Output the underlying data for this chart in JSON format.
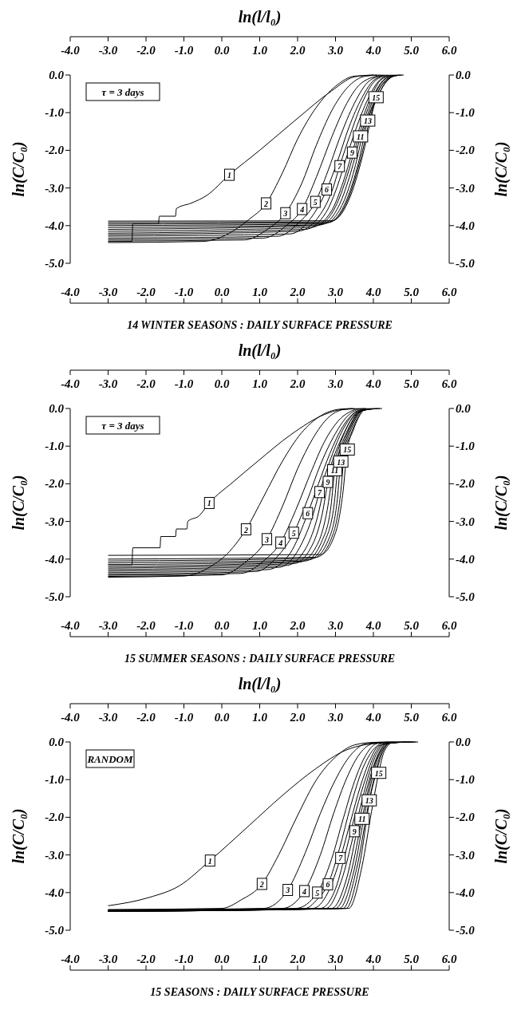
{
  "chart_data": [
    {
      "type": "line",
      "title": "14 WINTER SEASONS : DAILY SURFACE PRESSURE",
      "x2label": "ln(l/l₀)",
      "ylabel": "ln(C/C₀)",
      "y2label": "ln(C/C₀)",
      "xlim": [
        -4,
        6
      ],
      "xticks": [
        {
          "value": -4,
          "label": "-4.0"
        },
        {
          "value": -3,
          "label": "-3.0"
        },
        {
          "value": -2,
          "label": "-2.0"
        },
        {
          "value": -1,
          "label": "-1.0"
        },
        {
          "value": 0,
          "label": "0.0"
        },
        {
          "value": 1,
          "label": "1.0"
        },
        {
          "value": 2,
          "label": "2.0"
        },
        {
          "value": 3,
          "label": "3.0"
        },
        {
          "value": 4,
          "label": "4.0"
        },
        {
          "value": 5,
          "label": "5.0"
        },
        {
          "value": 6,
          "label": "6.0"
        }
      ],
      "x2lim": [
        -4,
        6
      ],
      "x2ticks": [
        {
          "value": -4,
          "label": "-4.0"
        },
        {
          "value": -3,
          "label": "-3.0"
        },
        {
          "value": -2,
          "label": "-2.0"
        },
        {
          "value": -1,
          "label": "-1.0"
        },
        {
          "value": 0,
          "label": "0.0"
        },
        {
          "value": 1,
          "label": "1.0"
        },
        {
          "value": 2,
          "label": "2.0"
        },
        {
          "value": 3,
          "label": "3.0"
        },
        {
          "value": 4,
          "label": "4.0"
        },
        {
          "value": 5,
          "label": "5.0"
        },
        {
          "value": 6,
          "label": "6.0"
        }
      ],
      "ylim": [
        -5,
        0
      ],
      "yticks": [
        {
          "value": 0,
          "label": "0.0"
        },
        {
          "value": -1,
          "label": "-1.0"
        },
        {
          "value": -2,
          "label": "-2.0"
        },
        {
          "value": -3,
          "label": "-3.0"
        },
        {
          "value": -4,
          "label": "-4.0"
        },
        {
          "value": -5,
          "label": "-5.0"
        }
      ],
      "y2lim": [
        -5,
        0
      ],
      "y2ticks": [
        {
          "value": 0,
          "label": "0.0"
        },
        {
          "value": -1,
          "label": "-1.0"
        },
        {
          "value": -2,
          "label": "-2.0"
        },
        {
          "value": -3,
          "label": "-3.0"
        },
        {
          "value": -4,
          "label": "-4.0"
        },
        {
          "value": -5,
          "label": "-5.0"
        }
      ],
      "series": [
        {
          "color": "#000000",
          "x": [
            -3,
            -2.37,
            -2.35,
            -1.67,
            -1.65,
            -1.22,
            -1.2,
            -0.8,
            -0.4,
            0.2,
            1.0,
            2.0,
            2.9,
            3.5,
            4.0
          ],
          "values": [
            -4.42,
            -4.42,
            -3.95,
            -3.95,
            -3.75,
            -3.75,
            -3.55,
            -3.4,
            -3.2,
            -2.65,
            -2.0,
            -1.15,
            -0.42,
            -0.05,
            0
          ]
        },
        {
          "color": "#000000",
          "x": [
            -3,
            -0.5,
            0.2,
            0.7,
            1.17,
            1.6,
            2.0,
            2.5,
            3.0,
            3.5,
            4.1
          ],
          "values": [
            -4.45,
            -4.42,
            -4.2,
            -3.85,
            -3.41,
            -2.6,
            -1.7,
            -0.85,
            -0.3,
            -0.03,
            0
          ]
        },
        {
          "color": "#000000",
          "x": [
            -3,
            0.6,
            1.2,
            1.68,
            2.1,
            2.5,
            2.9,
            3.3,
            3.8,
            4.2
          ],
          "values": [
            -4.41,
            -4.38,
            -4.1,
            -3.67,
            -2.9,
            -1.85,
            -0.95,
            -0.35,
            -0.03,
            0
          ]
        },
        {
          "color": "#000000",
          "x": [
            -3,
            1.1,
            1.7,
            2.12,
            2.5,
            2.9,
            3.3,
            3.7,
            4.25
          ],
          "values": [
            -4.37,
            -4.33,
            -4.0,
            -3.56,
            -2.7,
            -1.65,
            -0.75,
            -0.2,
            0
          ]
        },
        {
          "color": "#000000",
          "x": [
            -3,
            1.5,
            2.0,
            2.47,
            2.8,
            3.1,
            3.5,
            3.9,
            4.3
          ],
          "values": [
            -4.33,
            -4.28,
            -3.95,
            -3.37,
            -2.55,
            -1.7,
            -0.75,
            -0.15,
            0
          ]
        },
        {
          "color": "#000000",
          "x": [
            -3,
            1.8,
            2.35,
            2.77,
            3.05,
            3.35,
            3.7,
            4.0,
            4.35
          ],
          "values": [
            -4.28,
            -4.22,
            -3.8,
            -3.04,
            -2.3,
            -1.4,
            -0.6,
            -0.15,
            0
          ]
        },
        {
          "color": "#000000",
          "x": [
            -3,
            2.0,
            2.6,
            2.9,
            3.11,
            3.4,
            3.7,
            4.05,
            4.4
          ],
          "values": [
            -4.24,
            -4.15,
            -3.7,
            -3.1,
            -2.42,
            -1.55,
            -0.75,
            -0.15,
            0
          ]
        },
        {
          "color": "#000000",
          "x": [
            -3,
            2.2,
            2.75,
            3.05,
            3.27,
            3.55,
            3.85,
            4.15,
            4.45
          ],
          "values": [
            -4.2,
            -4.1,
            -3.65,
            -2.95,
            -2.25,
            -1.4,
            -0.65,
            -0.15,
            0
          ]
        },
        {
          "color": "#000000",
          "x": [
            -3,
            2.35,
            2.9,
            3.2,
            3.44,
            3.7,
            3.95,
            4.2,
            4.5
          ],
          "values": [
            -4.15,
            -4.05,
            -3.6,
            -2.85,
            -2.06,
            -1.2,
            -0.55,
            -0.13,
            0
          ]
        },
        {
          "color": "#000000",
          "x": [
            -3,
            2.5,
            3.0,
            3.3,
            3.55,
            3.8,
            4.05,
            4.3,
            4.55
          ],
          "values": [
            -4.1,
            -4.0,
            -3.5,
            -2.7,
            -1.85,
            -1.05,
            -0.45,
            -0.1,
            0
          ]
        },
        {
          "color": "#000000",
          "x": [
            -3,
            2.6,
            3.1,
            3.4,
            3.66,
            3.9,
            4.1,
            4.35,
            4.6
          ],
          "values": [
            -4.05,
            -3.98,
            -3.45,
            -2.6,
            -1.63,
            -0.9,
            -0.4,
            -0.08,
            0
          ]
        },
        {
          "color": "#000000",
          "x": [
            -3,
            2.7,
            3.2,
            3.5,
            3.75,
            4.0,
            4.2,
            4.45,
            4.65
          ],
          "values": [
            -4.0,
            -3.95,
            -3.4,
            -2.5,
            -1.45,
            -0.75,
            -0.3,
            -0.05,
            0
          ]
        },
        {
          "color": "#000000",
          "x": [
            -3,
            2.8,
            3.3,
            3.6,
            3.85,
            4.1,
            4.3,
            4.5,
            4.7
          ],
          "values": [
            -3.96,
            -3.92,
            -3.3,
            -2.35,
            -1.21,
            -0.6,
            -0.22,
            -0.04,
            0
          ]
        },
        {
          "color": "#000000",
          "x": [
            -3,
            2.85,
            3.35,
            3.67,
            3.95,
            4.15,
            4.35,
            4.55,
            4.75
          ],
          "values": [
            -3.92,
            -3.9,
            -3.25,
            -2.2,
            -1.0,
            -0.5,
            -0.17,
            -0.03,
            0
          ]
        },
        {
          "color": "#000000",
          "x": [
            -3,
            2.9,
            3.4,
            3.75,
            3.95,
            4.07,
            4.3,
            4.5,
            4.8
          ],
          "values": [
            -3.88,
            -3.87,
            -3.2,
            -2.0,
            -1.1,
            -0.59,
            -0.18,
            -0.03,
            0
          ]
        }
      ],
      "annotations": [
        "τ = 3 days",
        {
          "text": "1",
          "x": 0.2,
          "y": -2.65
        },
        {
          "text": "2",
          "x": 1.17,
          "y": -3.41
        },
        {
          "text": "3",
          "x": 1.68,
          "y": -3.67
        },
        {
          "text": "4",
          "x": 2.12,
          "y": -3.56
        },
        {
          "text": "5",
          "x": 2.47,
          "y": -3.37
        },
        {
          "text": "6",
          "x": 2.77,
          "y": -3.04
        },
        {
          "text": "7",
          "x": 3.11,
          "y": -2.42
        },
        {
          "text": "9",
          "x": 3.44,
          "y": -2.06
        },
        {
          "text": "11",
          "x": 3.66,
          "y": -1.63
        },
        {
          "text": "13",
          "x": 3.85,
          "y": -1.21
        },
        {
          "text": "15",
          "x": 4.07,
          "y": -0.59
        }
      ]
    },
    {
      "type": "line",
      "title": "15 SUMMER SEASONS : DAILY SURFACE PRESSURE",
      "x2label": "ln(l/l₀)",
      "ylabel": "ln(C/C₀)",
      "y2label": "ln(C/C₀)",
      "xlim": [
        -4,
        6
      ],
      "xticks": [
        {
          "value": -4,
          "label": "-4.0"
        },
        {
          "value": -3,
          "label": "-3.0"
        },
        {
          "value": -2,
          "label": "-2.0"
        },
        {
          "value": -1,
          "label": "-1.0"
        },
        {
          "value": 0,
          "label": "0.0"
        },
        {
          "value": 1,
          "label": "1.0"
        },
        {
          "value": 2,
          "label": "2.0"
        },
        {
          "value": 3,
          "label": "3.0"
        },
        {
          "value": 4,
          "label": "4.0"
        },
        {
          "value": 5,
          "label": "5.0"
        },
        {
          "value": 6,
          "label": "6.0"
        }
      ],
      "x2lim": [
        -4,
        6
      ],
      "x2ticks": [
        {
          "value": -4,
          "label": "-4.0"
        },
        {
          "value": -3,
          "label": "-3.0"
        },
        {
          "value": -2,
          "label": "-2.0"
        },
        {
          "value": -1,
          "label": "-1.0"
        },
        {
          "value": 0,
          "label": "0.0"
        },
        {
          "value": 1,
          "label": "1.0"
        },
        {
          "value": 2,
          "label": "2.0"
        },
        {
          "value": 3,
          "label": "3.0"
        },
        {
          "value": 4,
          "label": "4.0"
        },
        {
          "value": 5,
          "label": "5.0"
        },
        {
          "value": 6,
          "label": "6.0"
        }
      ],
      "ylim": [
        -5,
        0
      ],
      "yticks": [
        {
          "value": 0,
          "label": "0.0"
        },
        {
          "value": -1,
          "label": "-1.0"
        },
        {
          "value": -2,
          "label": "-2.0"
        },
        {
          "value": -3,
          "label": "-3.0"
        },
        {
          "value": -4,
          "label": "-4.0"
        },
        {
          "value": -5,
          "label": "-5.0"
        }
      ],
      "y2lim": [
        -5,
        0
      ],
      "y2ticks": [
        {
          "value": 0,
          "label": "0.0"
        },
        {
          "value": -1,
          "label": "-1.0"
        },
        {
          "value": -2,
          "label": "-2.0"
        },
        {
          "value": -3,
          "label": "-3.0"
        },
        {
          "value": -4,
          "label": "-4.0"
        },
        {
          "value": -5,
          "label": "-5.0"
        }
      ],
      "series": [
        {
          "color": "#000000",
          "x": [
            -3,
            -2.37,
            -2.35,
            -1.63,
            -1.61,
            -1.22,
            -1.2,
            -0.92,
            -0.9,
            -0.6,
            -0.33,
            0.3,
            0.95,
            1.83,
            2.71,
            3.16,
            3.8
          ],
          "values": [
            -4.15,
            -4.15,
            -3.7,
            -3.7,
            -3.4,
            -3.4,
            -3.2,
            -3.2,
            -3.0,
            -2.85,
            -2.51,
            -1.95,
            -1.4,
            -0.69,
            -0.16,
            -0.03,
            0
          ]
        },
        {
          "color": "#000000",
          "x": [
            -3,
            -1.0,
            -0.3,
            0.2,
            0.64,
            1.1,
            1.6,
            2.1,
            2.6,
            3.1,
            3.45
          ],
          "values": [
            -4.48,
            -4.45,
            -4.2,
            -3.8,
            -3.21,
            -2.35,
            -1.4,
            -0.65,
            -0.2,
            -0.02,
            0
          ]
        },
        {
          "color": "#000000",
          "x": [
            -3,
            0,
            0.6,
            1.19,
            1.6,
            2.0,
            2.4,
            2.8,
            3.2,
            3.51
          ],
          "values": [
            -4.46,
            -4.42,
            -4.1,
            -3.47,
            -2.6,
            -1.6,
            -0.8,
            -0.25,
            -0.03,
            0
          ]
        },
        {
          "color": "#000000",
          "x": [
            -3,
            0.5,
            1.1,
            1.55,
            1.95,
            2.35,
            2.7,
            3.1,
            3.5,
            3.57
          ],
          "values": [
            -4.43,
            -4.38,
            -4.05,
            -3.56,
            -2.7,
            -1.7,
            -0.9,
            -0.3,
            -0.03,
            0
          ]
        },
        {
          "color": "#000000",
          "x": [
            -3,
            0.9,
            1.45,
            1.9,
            2.25,
            2.6,
            2.95,
            3.3,
            3.63
          ],
          "values": [
            -4.4,
            -4.33,
            -3.95,
            -3.3,
            -2.45,
            -1.5,
            -0.75,
            -0.22,
            0
          ]
        },
        {
          "color": "#000000",
          "x": [
            -3,
            1.2,
            1.8,
            2.27,
            2.55,
            2.85,
            3.15,
            3.45,
            3.69
          ],
          "values": [
            -4.36,
            -4.28,
            -3.85,
            -2.78,
            -2.0,
            -1.2,
            -0.55,
            -0.15,
            0
          ]
        },
        {
          "color": "#000000",
          "x": [
            -3,
            1.5,
            2.05,
            2.35,
            2.58,
            2.85,
            3.15,
            3.45,
            3.75
          ],
          "values": [
            -4.32,
            -4.22,
            -3.7,
            -3.0,
            -2.22,
            -1.4,
            -0.65,
            -0.18,
            0
          ]
        },
        {
          "color": "#000000",
          "x": [
            -3,
            1.7,
            2.25,
            2.52,
            2.7,
            2.95,
            3.25,
            3.5,
            3.81
          ],
          "values": [
            -4.28,
            -4.17,
            -3.65,
            -2.9,
            -2.1,
            -1.3,
            -0.6,
            -0.17,
            0
          ]
        },
        {
          "color": "#000000",
          "x": [
            -3,
            1.9,
            2.4,
            2.65,
            2.8,
            3.05,
            3.3,
            3.55,
            3.87
          ],
          "values": [
            -4.24,
            -4.12,
            -3.6,
            -2.8,
            -1.95,
            -1.15,
            -0.5,
            -0.13,
            0
          ]
        },
        {
          "color": "#000000",
          "x": [
            -3,
            2.05,
            2.55,
            2.78,
            2.92,
            3.13,
            3.38,
            3.6,
            3.93
          ],
          "values": [
            -4.2,
            -4.08,
            -3.55,
            -2.7,
            -1.8,
            -1.05,
            -0.45,
            -0.1,
            0
          ]
        },
        {
          "color": "#000000",
          "x": [
            -3,
            2.2,
            2.65,
            2.88,
            2.98,
            3.2,
            3.43,
            3.65,
            3.99
          ],
          "values": [
            -4.15,
            -4.05,
            -3.5,
            -2.6,
            -1.64,
            -0.95,
            -0.38,
            -0.08,
            0
          ]
        },
        {
          "color": "#000000",
          "x": [
            -3,
            2.3,
            2.75,
            2.97,
            3.07,
            3.27,
            3.48,
            3.68,
            4.05
          ],
          "values": [
            -4.1,
            -4.02,
            -3.45,
            -2.5,
            -1.5,
            -0.85,
            -0.33,
            -0.07,
            0
          ]
        },
        {
          "color": "#000000",
          "x": [
            -3,
            2.4,
            2.85,
            3.05,
            3.14,
            3.33,
            3.52,
            3.7,
            4.11
          ],
          "values": [
            -4.05,
            -3.98,
            -3.4,
            -2.4,
            -1.41,
            -0.78,
            -0.3,
            -0.06,
            0
          ]
        },
        {
          "color": "#000000",
          "x": [
            -3,
            2.5,
            2.93,
            3.13,
            3.23,
            3.4,
            3.57,
            3.73,
            4.17
          ],
          "values": [
            -4.0,
            -3.95,
            -3.35,
            -2.3,
            -1.25,
            -0.7,
            -0.27,
            -0.05,
            0
          ]
        },
        {
          "color": "#000000",
          "x": [
            -3,
            2.6,
            3.0,
            3.2,
            3.31,
            3.46,
            3.62,
            3.77,
            4.23
          ],
          "values": [
            -3.9,
            -3.88,
            -3.3,
            -2.2,
            -1.09,
            -0.6,
            -0.22,
            -0.04,
            0
          ]
        }
      ],
      "annotations": [
        "τ = 3 days",
        {
          "text": "1",
          "x": -0.33,
          "y": -2.51
        },
        {
          "text": "2",
          "x": 0.64,
          "y": -3.21
        },
        {
          "text": "3",
          "x": 1.19,
          "y": -3.47
        },
        {
          "text": "4",
          "x": 1.55,
          "y": -3.56
        },
        {
          "text": "5",
          "x": 1.9,
          "y": -3.3
        },
        {
          "text": "6",
          "x": 2.27,
          "y": -2.78
        },
        {
          "text": "7",
          "x": 2.58,
          "y": -2.22
        },
        {
          "text": "9",
          "x": 2.8,
          "y": -1.95
        },
        {
          "text": "11",
          "x": 2.98,
          "y": -1.64
        },
        {
          "text": "13",
          "x": 3.14,
          "y": -1.41
        },
        {
          "text": "15",
          "x": 3.31,
          "y": -1.09
        }
      ]
    },
    {
      "type": "line",
      "title": "15 SEASONS : DAILY SURFACE PRESSURE",
      "x2label": "ln(l/l₀)",
      "ylabel": "ln(C/C₀)",
      "y2label": "ln(C/C₀)",
      "xlim": [
        -4,
        6
      ],
      "xticks": [
        {
          "value": -4,
          "label": "-4.0"
        },
        {
          "value": -3,
          "label": "-3.0"
        },
        {
          "value": -2,
          "label": "-2.0"
        },
        {
          "value": -1,
          "label": "-1.0"
        },
        {
          "value": 0,
          "label": "0.0"
        },
        {
          "value": 1,
          "label": "1.0"
        },
        {
          "value": 2,
          "label": "2.0"
        },
        {
          "value": 3,
          "label": "3.0"
        },
        {
          "value": 4,
          "label": "4.0"
        },
        {
          "value": 5,
          "label": "5.0"
        },
        {
          "value": 6,
          "label": "6.0"
        }
      ],
      "x2lim": [
        -4,
        6
      ],
      "x2ticks": [
        {
          "value": -4,
          "label": "-4.0"
        },
        {
          "value": -3,
          "label": "-3.0"
        },
        {
          "value": -2,
          "label": "-2.0"
        },
        {
          "value": -1,
          "label": "-1.0"
        },
        {
          "value": 0,
          "label": "0.0"
        },
        {
          "value": 1,
          "label": "1.0"
        },
        {
          "value": 2,
          "label": "2.0"
        },
        {
          "value": 3,
          "label": "3.0"
        },
        {
          "value": 4,
          "label": "4.0"
        },
        {
          "value": 5,
          "label": "5.0"
        },
        {
          "value": 6,
          "label": "6.0"
        }
      ],
      "ylim": [
        -5,
        0
      ],
      "yticks": [
        {
          "value": 0,
          "label": "0.0"
        },
        {
          "value": -1,
          "label": "-1.0"
        },
        {
          "value": -2,
          "label": "-2.0"
        },
        {
          "value": -3,
          "label": "-3.0"
        },
        {
          "value": -4,
          "label": "-4.0"
        },
        {
          "value": -5,
          "label": "-5.0"
        }
      ],
      "y2lim": [
        -5,
        0
      ],
      "y2ticks": [
        {
          "value": 0,
          "label": "0.0"
        },
        {
          "value": -1,
          "label": "-1.0"
        },
        {
          "value": -2,
          "label": "-2.0"
        },
        {
          "value": -3,
          "label": "-3.0"
        },
        {
          "value": -4,
          "label": "-4.0"
        },
        {
          "value": -5,
          "label": "-5.0"
        }
      ],
      "series": [
        {
          "color": "#000000",
          "x": [
            -3,
            -1.92,
            -1.12,
            -0.31,
            0.72,
            1.6,
            2.48,
            3.27,
            3.8,
            4.68
          ],
          "values": [
            -4.35,
            -4.13,
            -3.82,
            -3.15,
            -2.22,
            -1.42,
            -0.71,
            -0.22,
            -0.07,
            0
          ]
        },
        {
          "color": "#000000",
          "x": [
            -3,
            0.0,
            0.5,
            1.06,
            1.5,
            2.0,
            2.5,
            3.0,
            3.5,
            4.0,
            4.4
          ],
          "values": [
            -4.45,
            -4.42,
            -4.2,
            -3.77,
            -3.0,
            -1.95,
            -1.0,
            -0.4,
            -0.08,
            -0.01,
            0
          ]
        },
        {
          "color": "#000000",
          "x": [
            -3,
            1.1,
            1.74,
            2.2,
            2.6,
            3.0,
            3.4,
            3.8,
            4.46
          ],
          "values": [
            -4.46,
            -4.42,
            -3.93,
            -2.95,
            -1.9,
            -1.0,
            -0.35,
            -0.05,
            0
          ]
        },
        {
          "color": "#000000",
          "x": [
            -3,
            1.6,
            2.18,
            2.6,
            2.95,
            3.3,
            3.65,
            4.0,
            4.52
          ],
          "values": [
            -4.47,
            -4.42,
            -3.96,
            -3.0,
            -1.9,
            -0.95,
            -0.3,
            -0.04,
            0
          ]
        },
        {
          "color": "#000000",
          "x": [
            -3,
            1.95,
            2.52,
            2.9,
            3.2,
            3.5,
            3.8,
            4.1,
            4.58
          ],
          "values": [
            -4.47,
            -4.42,
            -4.0,
            -3.1,
            -2.05,
            -1.05,
            -0.35,
            -0.04,
            0
          ]
        },
        {
          "color": "#000000",
          "x": [
            -3,
            2.2,
            2.5,
            2.8,
            3.1,
            3.4,
            3.7,
            4.0,
            4.3,
            4.64
          ],
          "values": [
            -4.48,
            -4.42,
            -4.2,
            -3.78,
            -2.85,
            -1.7,
            -0.75,
            -0.2,
            -0.02,
            0
          ]
        },
        {
          "color": "#000000",
          "x": [
            -3,
            2.4,
            2.8,
            3.13,
            3.4,
            3.65,
            3.9,
            4.15,
            4.7
          ],
          "values": [
            -4.48,
            -4.42,
            -4.0,
            -3.08,
            -2.1,
            -1.2,
            -0.5,
            -0.1,
            0
          ]
        },
        {
          "color": "#000000",
          "x": [
            -3,
            2.6,
            3.0,
            3.3,
            3.55,
            3.8,
            4.02,
            4.25,
            4.76
          ],
          "values": [
            -4.48,
            -4.42,
            -3.9,
            -2.8,
            -1.8,
            -0.95,
            -0.35,
            -0.06,
            0
          ]
        },
        {
          "color": "#000000",
          "x": [
            -3,
            2.75,
            3.15,
            3.5,
            3.7,
            3.9,
            4.1,
            4.3,
            4.82
          ],
          "values": [
            -4.49,
            -4.42,
            -3.7,
            -2.37,
            -1.55,
            -0.8,
            -0.28,
            -0.05,
            0
          ]
        },
        {
          "color": "#000000",
          "x": [
            -3,
            2.9,
            3.3,
            3.6,
            3.8,
            4.0,
            4.18,
            4.35,
            4.88
          ],
          "values": [
            -4.49,
            -4.42,
            -3.6,
            -2.2,
            -1.35,
            -0.65,
            -0.22,
            -0.04,
            0
          ]
        },
        {
          "color": "#000000",
          "x": [
            -3,
            3.0,
            3.4,
            3.7,
            3.88,
            4.05,
            4.22,
            4.4,
            4.94
          ],
          "values": [
            -4.5,
            -4.42,
            -3.5,
            -2.04,
            -1.2,
            -0.55,
            -0.18,
            -0.03,
            0
          ]
        },
        {
          "color": "#000000",
          "x": [
            -3,
            3.1,
            3.48,
            3.78,
            3.95,
            4.1,
            4.27,
            4.43,
            5.0
          ],
          "values": [
            -4.5,
            -4.42,
            -3.45,
            -1.85,
            -1.05,
            -0.48,
            -0.15,
            -0.03,
            0
          ]
        },
        {
          "color": "#000000",
          "x": [
            -3,
            3.2,
            3.55,
            3.89,
            4.02,
            4.15,
            4.3,
            4.45,
            5.06
          ],
          "values": [
            -4.5,
            -4.42,
            -3.4,
            -1.55,
            -0.95,
            -0.45,
            -0.13,
            -0.02,
            0
          ]
        },
        {
          "color": "#000000",
          "x": [
            -3,
            3.28,
            3.62,
            3.93,
            4.08,
            4.2,
            4.34,
            4.48,
            5.12
          ],
          "values": [
            -4.5,
            -4.42,
            -3.35,
            -1.4,
            -0.8,
            -0.38,
            -0.11,
            -0.02,
            0
          ]
        },
        {
          "color": "#000000",
          "x": [
            -3,
            3.35,
            3.7,
            3.95,
            4.14,
            4.25,
            4.38,
            4.5,
            5.18
          ],
          "values": [
            -4.5,
            -4.42,
            -3.3,
            -1.85,
            -0.82,
            -0.35,
            -0.1,
            -0.02,
            0
          ]
        }
      ],
      "annotations": [
        "RANDOM",
        {
          "text": "1",
          "x": -0.31,
          "y": -3.15
        },
        {
          "text": "2",
          "x": 1.06,
          "y": -3.77
        },
        {
          "text": "3",
          "x": 1.74,
          "y": -3.93
        },
        {
          "text": "4",
          "x": 2.18,
          "y": -3.96
        },
        {
          "text": "5",
          "x": 2.52,
          "y": -4.0
        },
        {
          "text": "6",
          "x": 2.8,
          "y": -3.78
        },
        {
          "text": "7",
          "x": 3.13,
          "y": -3.08
        },
        {
          "text": "9",
          "x": 3.5,
          "y": -2.37
        },
        {
          "text": "11",
          "x": 3.7,
          "y": -2.04
        },
        {
          "text": "13",
          "x": 3.89,
          "y": -1.55
        },
        {
          "text": "15",
          "x": 4.14,
          "y": -0.82
        }
      ]
    }
  ]
}
